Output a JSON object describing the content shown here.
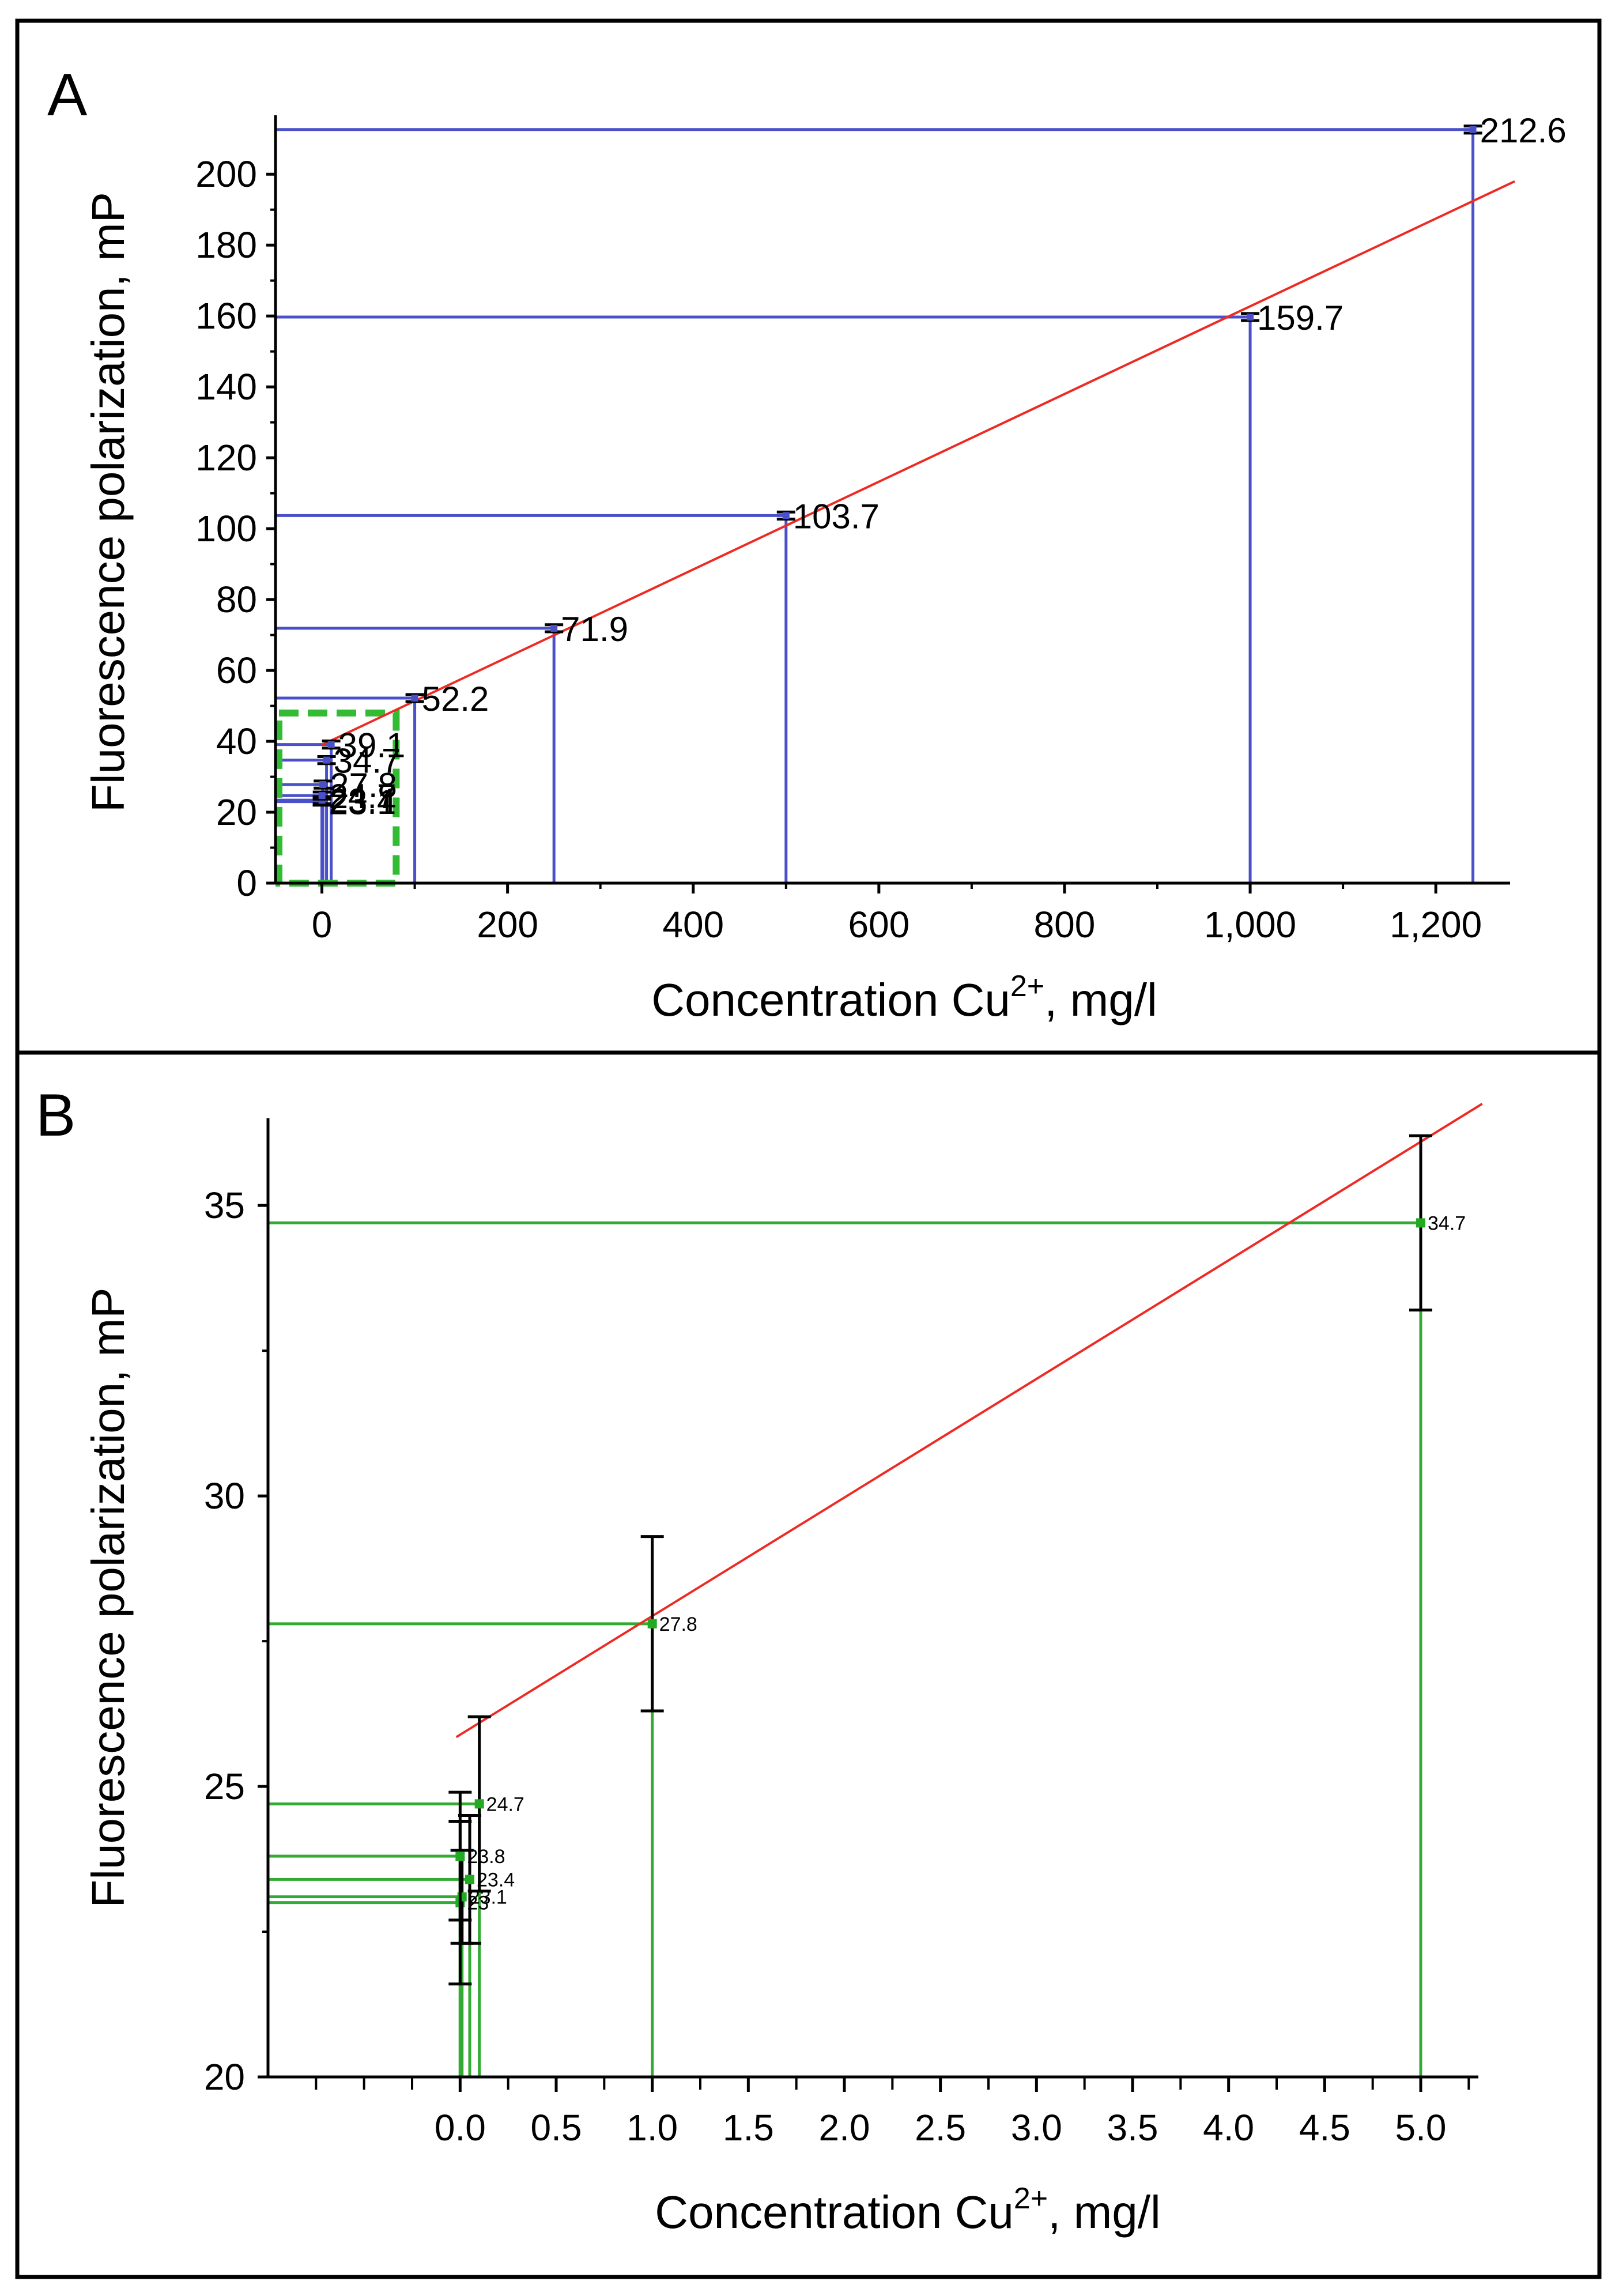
{
  "figure": {
    "panels": [
      "A",
      "B"
    ]
  },
  "chart_data": [
    {
      "panel": "A",
      "type": "scatter",
      "title": "",
      "xlabel_main": "Concentration Cu",
      "xlabel_sup": "2+",
      "xlabel_tail": ", mg/l",
      "ylabel": "Fluorescence polarization, mP",
      "xlim": [
        -50,
        1280
      ],
      "ylim": [
        0,
        215
      ],
      "x_ticks": [
        0,
        200,
        400,
        600,
        800,
        1000,
        1200
      ],
      "x_tick_labels": [
        "0",
        "200",
        "400",
        "600",
        "800",
        "1,000",
        "1,200"
      ],
      "y_ticks": [
        0,
        20,
        40,
        60,
        80,
        100,
        120,
        140,
        160,
        180,
        200
      ],
      "y_tick_labels": [
        "0",
        "20",
        "40",
        "60",
        "80",
        "100",
        "120",
        "140",
        "160",
        "180",
        "200"
      ],
      "points": [
        {
          "x": 0,
          "y": 23.0,
          "err": 1.0,
          "label": "23"
        },
        {
          "x": 0.01,
          "y": 23.1,
          "err": 1.0,
          "label": "23.1"
        },
        {
          "x": 0.05,
          "y": 23.4,
          "err": 1.0,
          "label": "23.4"
        },
        {
          "x": 0.1,
          "y": 24.7,
          "err": 1.0,
          "label": "24.7"
        },
        {
          "x": 1,
          "y": 27.8,
          "err": 1.0,
          "label": "27.8"
        },
        {
          "x": 5,
          "y": 34.7,
          "err": 1.0,
          "label": "34.7"
        },
        {
          "x": 10,
          "y": 39.1,
          "err": 1.0,
          "label": "39.1"
        },
        {
          "x": 100,
          "y": 52.2,
          "err": 1.0,
          "label": "52.2"
        },
        {
          "x": 250,
          "y": 71.9,
          "err": 1.0,
          "label": "71.9"
        },
        {
          "x": 500,
          "y": 103.7,
          "err": 1.0,
          "label": "103.7"
        },
        {
          "x": 1000,
          "y": 159.7,
          "err": 1.0,
          "label": "159.7"
        },
        {
          "x": 1240,
          "y": 212.6,
          "err": 1.0,
          "label": "212.6"
        }
      ],
      "fit_line": {
        "x": [
          0,
          1285
        ],
        "y": [
          39.0,
          198.0
        ]
      },
      "inset_box": {
        "x": [
          -50,
          80
        ],
        "y": [
          0,
          48
        ]
      },
      "colors": {
        "guide": "#4a50c8",
        "fit": "#ee2a24",
        "inset_box": "#33bb33",
        "error": "#000000"
      }
    },
    {
      "panel": "B",
      "type": "scatter",
      "title": "",
      "xlabel_main": "Concentration Cu",
      "xlabel_sup": "2+",
      "xlabel_tail": ", mg/l",
      "ylabel": "Fluorescence polarization, mP",
      "xlim": [
        -1.0,
        5.3
      ],
      "ylim": [
        20,
        36.5
      ],
      "x_ticks": [
        0,
        0.5,
        1.0,
        1.5,
        2.0,
        2.5,
        3.0,
        3.5,
        4.0,
        4.5,
        5.0
      ],
      "x_tick_labels": [
        "0.0",
        "0.5",
        "1.0",
        "1.5",
        "2.0",
        "2.5",
        "3.0",
        "3.5",
        "4.0",
        "4.5",
        "5.0"
      ],
      "y_ticks": [
        20,
        25,
        30,
        35
      ],
      "y_tick_labels": [
        "20",
        "25",
        "30",
        "35"
      ],
      "points": [
        {
          "x": 0.0,
          "y": 23.0,
          "err": 1.4,
          "label": "23"
        },
        {
          "x": 0.01,
          "y": 23.1,
          "err": 0.8,
          "label": "23.1"
        },
        {
          "x": 0.05,
          "y": 23.4,
          "err": 1.1,
          "label": "23.4"
        },
        {
          "x": 0.0,
          "y": 23.8,
          "err": 1.1,
          "label": "23.8"
        },
        {
          "x": 0.1,
          "y": 24.7,
          "err": 1.5,
          "label": "24.7"
        },
        {
          "x": 1.0,
          "y": 27.8,
          "err": 1.5,
          "label": "27.8"
        },
        {
          "x": 5.0,
          "y": 34.7,
          "err": 1.5,
          "label": "34.7"
        }
      ],
      "fit_line": {
        "x": [
          -0.02,
          5.32
        ],
        "y": [
          25.85,
          36.75
        ]
      },
      "colors": {
        "guide": "#33aa33",
        "fit": "#ee2a24",
        "point": "#22aa22",
        "error": "#000000"
      }
    }
  ]
}
